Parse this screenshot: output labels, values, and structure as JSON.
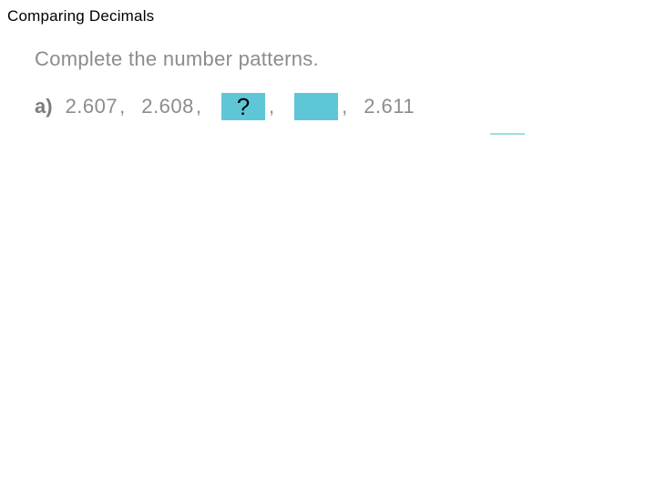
{
  "title": "Comparing Decimals",
  "instruction": "Complete the number patterns.",
  "problem": {
    "label": "a)",
    "items": [
      {
        "type": "num",
        "value": "2.607"
      },
      {
        "type": "num",
        "value": "2.608"
      },
      {
        "type": "blank",
        "show_q": true,
        "q": "?"
      },
      {
        "type": "blank",
        "show_q": false
      },
      {
        "type": "num",
        "value": "2.611"
      }
    ]
  },
  "colors": {
    "text_gray": "#8c8c8c",
    "blank_fill": "#5fc6d8",
    "title_black": "#000000",
    "qmark": "#000000"
  },
  "fonts": {
    "title_size": 17,
    "body_size": 22,
    "qmark_size": 26
  }
}
